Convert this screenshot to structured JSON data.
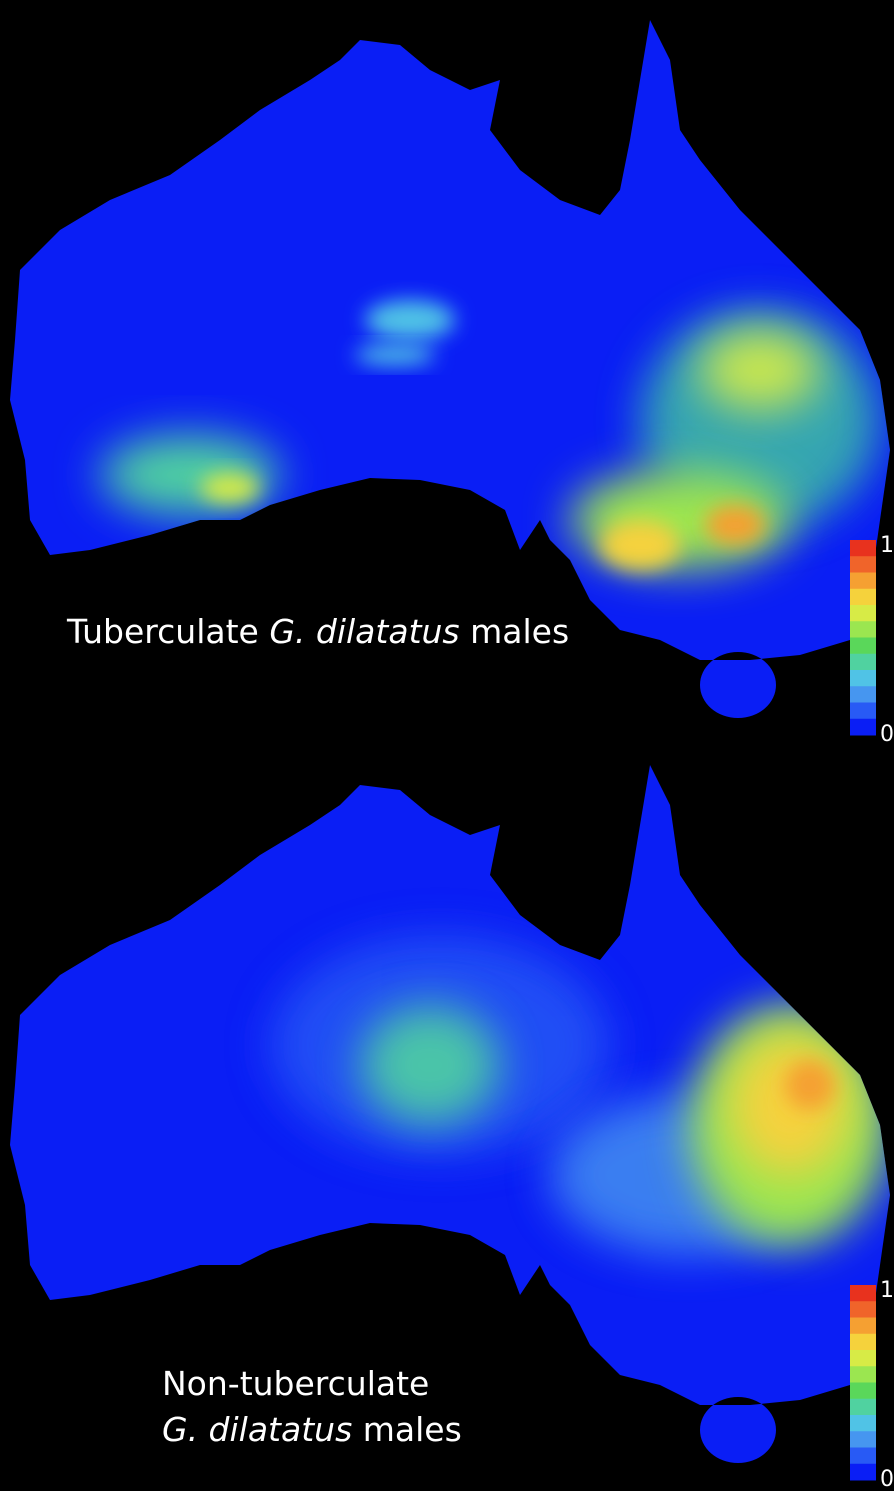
{
  "panels": [
    {
      "label": [
        "Tuberculate ",
        "G. dilatatus",
        " males"
      ]
    },
    {
      "label": [
        "Non-tuberculate",
        "G. dilatatus",
        " males"
      ]
    }
  ],
  "scale": {
    "max": 1,
    "min": 0,
    "colors": [
      "#e8321e",
      "#f0642a",
      "#f5a032",
      "#f5d23c",
      "#d7eb46",
      "#9be650",
      "#5ad75a",
      "#50d2a0",
      "#50c3e6",
      "#4696f0",
      "#285af5",
      "#0a1ef5"
    ]
  }
}
